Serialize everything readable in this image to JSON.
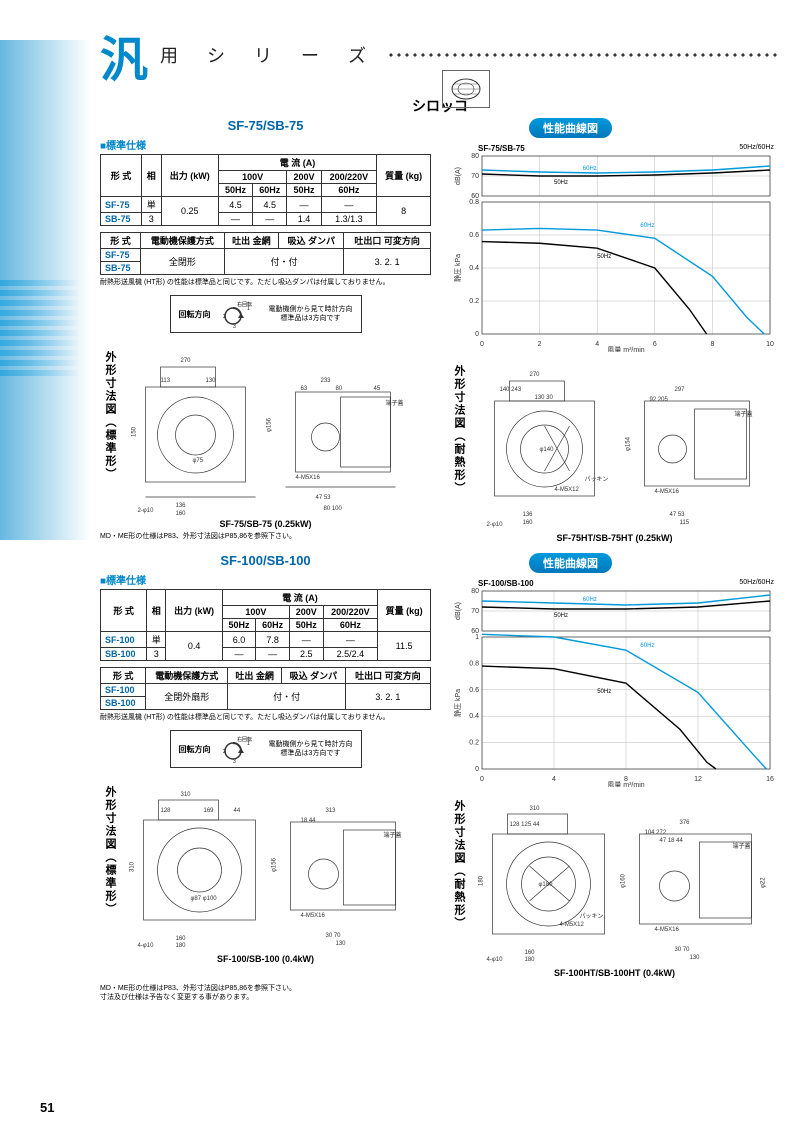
{
  "header": {
    "kanji": "汎",
    "text": "用 シ リ ー ズ"
  },
  "page_number": "51",
  "subtitle_sirocco": "シロッコ",
  "section_label": "■標準仕様",
  "rotation": {
    "label": "回転方向",
    "sub": "右回転",
    "note": "電動機側から見て時計方向\n標準品は3方向です"
  },
  "chart_badge": "性能曲線図",
  "sf75": {
    "title": "SF-75/SB-75",
    "table1": {
      "headers": {
        "model": "形 式",
        "phase": "相",
        "output": "出力\n(kW)",
        "current": "電 流 (A)",
        "v100": "100V",
        "v200": "200V",
        "v200220": "200/220V",
        "hz50": "50Hz",
        "hz60": "60Hz",
        "weight": "質量\n(kg)"
      },
      "rows": [
        {
          "model": "SF-75",
          "phase": "単",
          "output": "0.25",
          "v100_50": "4.5",
          "v100_60": "4.5",
          "v200_50": "—",
          "v200220_60": "—",
          "weight": "8"
        },
        {
          "model": "SB-75",
          "phase": "3",
          "output": "",
          "v100_50": "—",
          "v100_60": "—",
          "v200_50": "1.4",
          "v200220_60": "1.3/1.3",
          "weight": ""
        }
      ]
    },
    "table2": {
      "headers": {
        "model": "形 式",
        "motor": "電動機保護方式",
        "outlet_net": "吐出\n金網",
        "inlet_damper": "吸込\nダンパ",
        "outlet_dir": "吐出口\n可変方向"
      },
      "rows": [
        {
          "model": "SF-75",
          "motor": "全閉形",
          "net_damper": "付・付",
          "dir": "3. 2. 1"
        },
        {
          "model": "SB-75"
        }
      ]
    },
    "note": "耐熱形送風機 (HT形) の性能は標準品と同じです。ただし吸込ダンパは付属しておりません。",
    "drawing_std_label": "外形寸法図（標準形）",
    "drawing_ht_label": "外形寸法図（耐熱形）",
    "caption_std": "SF-75/SB-75 (0.25kW)",
    "caption_ht": "SF-75HT/SB-75HT (0.25kW)",
    "md_note": "MD・ME形の仕様はP83、外形寸法図はP85,86を参照下さい。",
    "chart": {
      "title": "SF-75/SB-75",
      "hz": "50Hz/60Hz",
      "y_top_label": "dB(A)",
      "y_bot_label": "静圧 kPa",
      "x_label": "風量 m³/min",
      "top_ylim": [
        60,
        80
      ],
      "top_ticks": [
        60,
        70,
        80
      ],
      "bot_ylim": [
        0,
        0.8
      ],
      "bot_ticks": [
        0,
        0.2,
        0.4,
        0.6,
        0.8
      ],
      "x_lim": [
        0,
        10
      ],
      "x_ticks": [
        0,
        2,
        4,
        6,
        8,
        10
      ],
      "colors": {
        "bg": "#ffffff",
        "grid": "#bbbbbb",
        "line50": "#000000",
        "line60": "#0099dd"
      },
      "noise_50": [
        [
          0,
          71
        ],
        [
          2,
          70
        ],
        [
          4,
          70
        ],
        [
          6,
          70.5
        ],
        [
          8,
          71.5
        ],
        [
          10,
          73
        ]
      ],
      "noise_60": [
        [
          0,
          73
        ],
        [
          2,
          72
        ],
        [
          4,
          71.5
        ],
        [
          6,
          72
        ],
        [
          8,
          73
        ],
        [
          10,
          75
        ]
      ],
      "press_50": [
        [
          0,
          0.56
        ],
        [
          2,
          0.55
        ],
        [
          4,
          0.52
        ],
        [
          6,
          0.4
        ],
        [
          7.2,
          0.15
        ],
        [
          7.8,
          0
        ]
      ],
      "press_60": [
        [
          0,
          0.63
        ],
        [
          2,
          0.64
        ],
        [
          4,
          0.63
        ],
        [
          6,
          0.58
        ],
        [
          8,
          0.35
        ],
        [
          9.2,
          0.1
        ],
        [
          9.8,
          0
        ]
      ]
    }
  },
  "sf100": {
    "title": "SF-100/SB-100",
    "table1": {
      "rows": [
        {
          "model": "SF-100",
          "phase": "単",
          "output": "0.4",
          "v100_50": "6.0",
          "v100_60": "7.8",
          "v200_50": "—",
          "v200220_60": "—",
          "weight": "11.5"
        },
        {
          "model": "SB-100",
          "phase": "3",
          "output": "",
          "v100_50": "—",
          "v100_60": "—",
          "v200_50": "2.5",
          "v200220_60": "2.5/2.4",
          "weight": ""
        }
      ]
    },
    "table2": {
      "rows": [
        {
          "model": "SF-100",
          "motor": "全閉外扇形",
          "net_damper": "付・付",
          "dir": "3. 2. 1"
        },
        {
          "model": "SB-100"
        }
      ]
    },
    "note": "耐熱形送風機 (HT形) の性能は標準品と同じです。ただし吸込ダンパは付属しておりません。",
    "caption_std": "SF-100/SB-100 (0.4kW)",
    "caption_ht": "SF-100HT/SB-100HT (0.4kW)",
    "chart": {
      "title": "SF-100/SB-100",
      "hz": "50Hz/60Hz",
      "y_top_label": "dB(A)",
      "y_bot_label": "静圧 kPa",
      "x_label": "風量 m³/min",
      "top_ylim": [
        60,
        80
      ],
      "top_ticks": [
        60,
        70,
        80
      ],
      "bot_ylim": [
        0,
        1.0
      ],
      "bot_ticks": [
        0,
        0.2,
        0.4,
        0.6,
        0.8,
        1.0
      ],
      "x_lim": [
        0,
        16
      ],
      "x_ticks": [
        0,
        4,
        8,
        12,
        16
      ],
      "colors": {
        "bg": "#ffffff",
        "grid": "#bbbbbb",
        "line50": "#000000",
        "line60": "#0099dd"
      },
      "noise_50": [
        [
          0,
          72
        ],
        [
          4,
          71
        ],
        [
          8,
          71
        ],
        [
          12,
          72
        ],
        [
          16,
          75
        ]
      ],
      "noise_60": [
        [
          0,
          75
        ],
        [
          4,
          74
        ],
        [
          8,
          73
        ],
        [
          12,
          74
        ],
        [
          16,
          78
        ]
      ],
      "press_50": [
        [
          0,
          0.78
        ],
        [
          4,
          0.76
        ],
        [
          8,
          0.65
        ],
        [
          11,
          0.3
        ],
        [
          12.5,
          0.05
        ],
        [
          13,
          0
        ]
      ],
      "press_60": [
        [
          0,
          1.02
        ],
        [
          4,
          1.0
        ],
        [
          8,
          0.9
        ],
        [
          12,
          0.58
        ],
        [
          15,
          0.12
        ],
        [
          15.8,
          0
        ]
      ]
    }
  },
  "footer_note": "MD・ME形の仕様はP83、外形寸法図はP85,86を参照下さい。\n寸法及び仕様は予告なく変更する事があります。"
}
